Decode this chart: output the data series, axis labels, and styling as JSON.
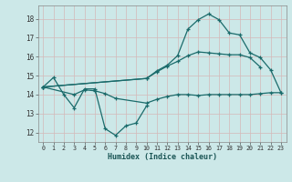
{
  "background_color": "#cce8e8",
  "grid_color": "#d4b8b8",
  "line_color": "#1a6b6b",
  "xlabel": "Humidex (Indice chaleur)",
  "ylim": [
    11.5,
    18.7
  ],
  "xlim": [
    -0.5,
    23.5
  ],
  "yticks": [
    12,
    13,
    14,
    15,
    16,
    17,
    18
  ],
  "xticks": [
    0,
    1,
    2,
    3,
    4,
    5,
    6,
    7,
    8,
    9,
    10,
    11,
    12,
    13,
    14,
    15,
    16,
    17,
    18,
    19,
    20,
    21,
    22,
    23
  ],
  "line1_x": [
    0,
    1,
    2,
    3,
    4,
    5,
    6,
    7,
    8,
    9,
    10
  ],
  "line1_y": [
    14.4,
    14.9,
    14.0,
    13.3,
    14.3,
    14.3,
    12.2,
    11.85,
    12.35,
    12.5,
    13.4
  ],
  "line2_x": [
    0,
    3,
    4,
    5,
    6,
    7,
    10,
    11,
    12,
    13,
    14,
    15,
    16,
    17,
    18,
    19,
    20,
    21,
    22,
    23
  ],
  "line2_y": [
    14.4,
    14.0,
    14.25,
    14.2,
    14.05,
    13.8,
    13.55,
    13.75,
    13.9,
    14.0,
    14.0,
    13.95,
    14.0,
    14.0,
    14.0,
    14.0,
    14.0,
    14.05,
    14.1,
    14.1
  ],
  "line3_x": [
    0,
    10,
    11,
    12,
    13,
    14,
    15,
    16,
    17,
    18,
    19,
    20,
    21,
    22,
    23
  ],
  "line3_y": [
    14.4,
    14.85,
    15.25,
    15.55,
    16.05,
    17.45,
    17.95,
    18.25,
    17.95,
    17.25,
    17.15,
    16.2,
    15.95,
    15.3,
    14.1
  ],
  "line4_x": [
    0,
    10,
    11,
    12,
    13,
    14,
    15,
    16,
    17,
    18,
    19,
    20,
    21
  ],
  "line4_y": [
    14.4,
    14.85,
    15.2,
    15.5,
    15.75,
    16.05,
    16.25,
    16.2,
    16.15,
    16.1,
    16.1,
    15.95,
    15.45
  ]
}
